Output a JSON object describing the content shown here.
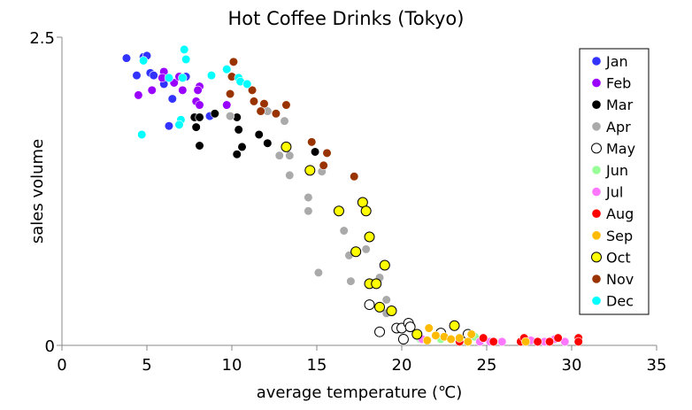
{
  "chart_data": {
    "type": "scatter",
    "title": "Hot Coffee Drinks (Tokyo)",
    "xlabel": "average temperature (℃)",
    "ylabel": "sales volume",
    "xlim": [
      0,
      35
    ],
    "ylim": [
      0,
      2.5
    ],
    "xticks": [
      "0",
      "5",
      "10",
      "15",
      "20",
      "25",
      "30",
      "35"
    ],
    "yticks": [
      "0",
      "2.5"
    ],
    "grid": false,
    "legend_position": "right",
    "series": [
      {
        "name": "Jan",
        "color": "#3333ff",
        "points": [
          [
            3.8,
            2.33
          ],
          [
            4.8,
            2.34
          ],
          [
            5.0,
            2.35
          ],
          [
            4.4,
            2.19
          ],
          [
            5.2,
            2.21
          ],
          [
            5.4,
            2.19
          ],
          [
            6.0,
            2.12
          ],
          [
            6.5,
            2.0
          ],
          [
            6.3,
            1.78
          ],
          [
            7.3,
            2.18
          ],
          [
            8.7,
            1.86
          ]
        ]
      },
      {
        "name": "Feb",
        "color": "#9900ff",
        "points": [
          [
            6.0,
            2.22
          ],
          [
            5.9,
            2.17
          ],
          [
            6.6,
            2.13
          ],
          [
            4.5,
            2.03
          ],
          [
            5.3,
            2.07
          ],
          [
            7.1,
            2.07
          ],
          [
            6.9,
            2.18
          ],
          [
            8.1,
            2.1
          ],
          [
            8.0,
            2.07
          ],
          [
            7.9,
            1.98
          ],
          [
            8.1,
            1.95
          ],
          [
            9.7,
            1.95
          ]
        ]
      },
      {
        "name": "Mar",
        "color": "#000000",
        "points": [
          [
            7.8,
            1.85
          ],
          [
            8.1,
            1.85
          ],
          [
            7.9,
            1.77
          ],
          [
            9.0,
            1.88
          ],
          [
            10.3,
            1.85
          ],
          [
            10.4,
            1.75
          ],
          [
            11.6,
            1.71
          ],
          [
            12.1,
            1.64
          ],
          [
            8.1,
            1.62
          ],
          [
            10.6,
            1.61
          ],
          [
            10.3,
            1.55
          ],
          [
            14.9,
            1.57
          ]
        ]
      },
      {
        "name": "Apr",
        "color": "#aaaaaa",
        "points": [
          [
            9.9,
            1.86
          ],
          [
            12.1,
            1.9
          ],
          [
            13.1,
            1.82
          ],
          [
            12.8,
            1.54
          ],
          [
            13.4,
            1.54
          ],
          [
            13.4,
            1.38
          ],
          [
            15.3,
            1.41
          ],
          [
            14.5,
            1.2
          ],
          [
            14.5,
            1.09
          ],
          [
            16.6,
            0.93
          ],
          [
            17.9,
            0.78
          ],
          [
            16.9,
            0.73
          ],
          [
            15.1,
            0.59
          ],
          [
            17.0,
            0.52
          ],
          [
            18.7,
            0.55
          ],
          [
            19.1,
            0.37
          ],
          [
            19.1,
            0.26
          ]
        ]
      },
      {
        "name": "May",
        "color": "#ffffff",
        "stroke": "#000000",
        "points": [
          [
            18.1,
            0.33
          ],
          [
            18.7,
            0.11
          ],
          [
            19.7,
            0.14
          ],
          [
            20.0,
            0.14
          ],
          [
            20.4,
            0.18
          ],
          [
            20.5,
            0.15
          ],
          [
            20.1,
            0.05
          ],
          [
            22.3,
            0.1
          ],
          [
            23.9,
            0.09
          ]
        ]
      },
      {
        "name": "Jun",
        "color": "#99ff99",
        "points": [
          [
            21.1,
            0.05
          ],
          [
            22.3,
            0.05
          ],
          [
            24.3,
            0.07
          ]
        ]
      },
      {
        "name": "Jul",
        "color": "#ff77ff",
        "points": [
          [
            21.2,
            0.05
          ],
          [
            24.6,
            0.03
          ],
          [
            25.2,
            0.03
          ],
          [
            25.9,
            0.03
          ],
          [
            27.6,
            0.04
          ],
          [
            28.4,
            0.03
          ],
          [
            29.0,
            0.05
          ],
          [
            29.6,
            0.03
          ]
        ]
      },
      {
        "name": "Aug",
        "color": "#ff0000",
        "points": [
          [
            24.8,
            0.06
          ],
          [
            25.4,
            0.03
          ],
          [
            23.4,
            0.03
          ],
          [
            27.0,
            0.03
          ],
          [
            27.2,
            0.06
          ],
          [
            28.0,
            0.03
          ],
          [
            28.7,
            0.03
          ],
          [
            29.2,
            0.06
          ],
          [
            30.4,
            0.06
          ],
          [
            30.4,
            0.03
          ]
        ]
      },
      {
        "name": "Sep",
        "color": "#ffbb00",
        "points": [
          [
            21.6,
            0.14
          ],
          [
            21.5,
            0.04
          ],
          [
            22.0,
            0.08
          ],
          [
            22.5,
            0.07
          ],
          [
            22.9,
            0.05
          ],
          [
            23.4,
            0.06
          ],
          [
            23.9,
            0.03
          ],
          [
            24.1,
            0.09
          ],
          [
            27.3,
            0.03
          ]
        ]
      },
      {
        "name": "Oct",
        "color": "#ffff00",
        "stroke": "#000000",
        "points": [
          [
            13.2,
            1.61
          ],
          [
            14.6,
            1.42
          ],
          [
            16.3,
            1.09
          ],
          [
            17.7,
            1.16
          ],
          [
            17.9,
            1.09
          ],
          [
            18.1,
            0.88
          ],
          [
            17.3,
            0.76
          ],
          [
            19.0,
            0.65
          ],
          [
            18.1,
            0.5
          ],
          [
            18.5,
            0.5
          ],
          [
            18.7,
            0.31
          ],
          [
            19.4,
            0.28
          ],
          [
            20.9,
            0.09
          ],
          [
            23.1,
            0.16
          ]
        ]
      },
      {
        "name": "Nov",
        "color": "#993300",
        "points": [
          [
            10.1,
            2.3
          ],
          [
            10.0,
            2.18
          ],
          [
            11.2,
            2.07
          ],
          [
            9.9,
            2.04
          ],
          [
            11.3,
            1.98
          ],
          [
            11.9,
            1.96
          ],
          [
            13.2,
            1.95
          ],
          [
            11.7,
            1.9
          ],
          [
            12.6,
            1.88
          ],
          [
            14.7,
            1.65
          ],
          [
            15.6,
            1.56
          ],
          [
            15.4,
            1.46
          ],
          [
            17.2,
            1.37
          ]
        ]
      },
      {
        "name": "Dec",
        "color": "#00ffff",
        "points": [
          [
            7.2,
            2.4
          ],
          [
            7.3,
            2.32
          ],
          [
            4.8,
            2.31
          ],
          [
            6.3,
            2.17
          ],
          [
            7.1,
            2.17
          ],
          [
            8.8,
            2.19
          ],
          [
            9.7,
            2.24
          ],
          [
            10.4,
            2.17
          ],
          [
            10.5,
            2.14
          ],
          [
            10.9,
            2.12
          ],
          [
            7.0,
            1.83
          ],
          [
            6.9,
            1.79
          ],
          [
            4.7,
            1.71
          ]
        ]
      }
    ]
  }
}
